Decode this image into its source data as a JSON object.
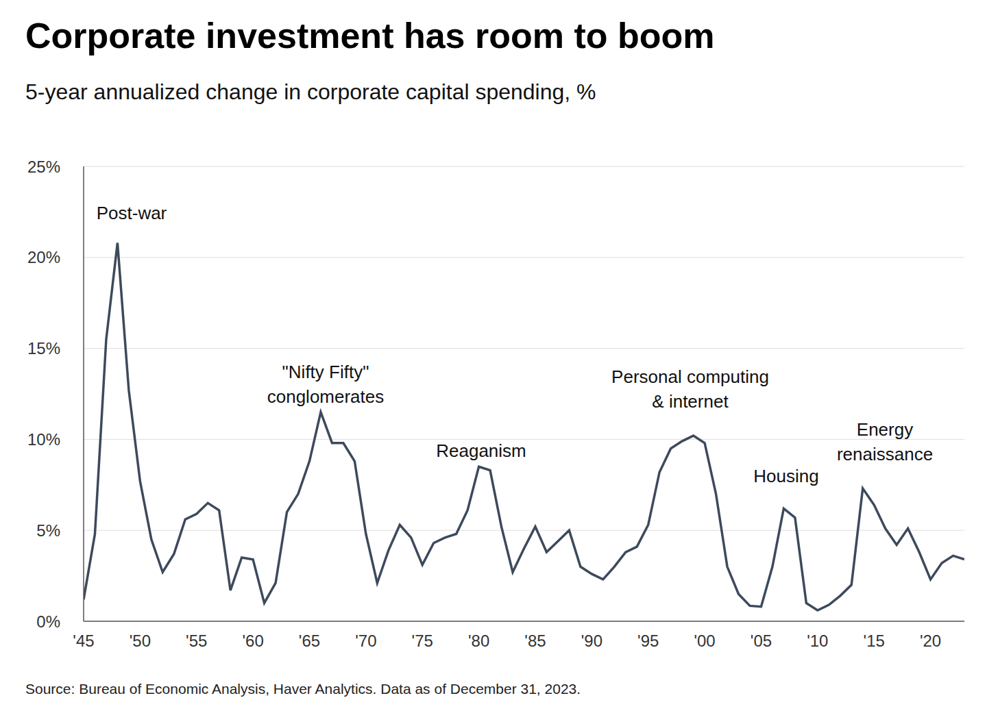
{
  "chart_data": {
    "type": "line",
    "title": "Corporate investment has room to boom",
    "subtitle": "5-year annualized change in corporate capital spending, %",
    "source": "Source: Bureau of Economic Analysis, Haver Analytics. Data as of December 31, 2023.",
    "x": [
      1945,
      1946,
      1947,
      1948,
      1949,
      1950,
      1951,
      1952,
      1953,
      1954,
      1955,
      1956,
      1957,
      1958,
      1959,
      1960,
      1961,
      1962,
      1963,
      1964,
      1965,
      1966,
      1967,
      1968,
      1969,
      1970,
      1971,
      1972,
      1973,
      1974,
      1975,
      1976,
      1977,
      1978,
      1979,
      1980,
      1981,
      1982,
      1983,
      1984,
      1985,
      1986,
      1987,
      1988,
      1989,
      1990,
      1991,
      1992,
      1993,
      1994,
      1995,
      1996,
      1997,
      1998,
      1999,
      2000,
      2001,
      2002,
      2003,
      2004,
      2005,
      2006,
      2007,
      2008,
      2009,
      2010,
      2011,
      2012,
      2013,
      2014,
      2015,
      2016,
      2017,
      2018,
      2019,
      2020,
      2021,
      2022,
      2023
    ],
    "values": [
      1.2,
      4.8,
      15.5,
      20.8,
      12.7,
      7.7,
      4.5,
      2.7,
      3.7,
      5.6,
      5.9,
      6.5,
      6.1,
      1.7,
      3.5,
      3.4,
      1.0,
      2.1,
      6.0,
      7.0,
      8.8,
      11.5,
      9.8,
      9.8,
      8.8,
      4.8,
      2.1,
      3.9,
      5.3,
      4.6,
      3.1,
      4.3,
      4.6,
      4.8,
      6.1,
      8.5,
      8.3,
      5.2,
      2.7,
      4.0,
      5.2,
      3.8,
      4.4,
      5.0,
      3.0,
      2.6,
      2.3,
      3.0,
      3.8,
      4.1,
      5.3,
      8.2,
      9.5,
      9.9,
      10.2,
      9.8,
      7.0,
      3.0,
      1.5,
      0.85,
      0.8,
      3.0,
      6.2,
      5.7,
      1.0,
      0.6,
      0.9,
      1.4,
      2.0,
      7.3,
      6.4,
      5.1,
      4.2,
      5.1,
      3.8,
      2.3,
      3.2,
      3.6,
      3.4
    ],
    "color": "#3d4a5c",
    "xlim": [
      1945,
      2023
    ],
    "xticks": [
      {
        "value": 1945,
        "label": "'45"
      },
      {
        "value": 1950,
        "label": "'50"
      },
      {
        "value": 1955,
        "label": "'55"
      },
      {
        "value": 1960,
        "label": "'60"
      },
      {
        "value": 1965,
        "label": "'65"
      },
      {
        "value": 1970,
        "label": "'70"
      },
      {
        "value": 1975,
        "label": "'75"
      },
      {
        "value": 1980,
        "label": "'80"
      },
      {
        "value": 1985,
        "label": "'85"
      },
      {
        "value": 1990,
        "label": "'90"
      },
      {
        "value": 1995,
        "label": "'95"
      },
      {
        "value": 2000,
        "label": "'00"
      },
      {
        "value": 2005,
        "label": "'05"
      },
      {
        "value": 2010,
        "label": "'10"
      },
      {
        "value": 2015,
        "label": "'15"
      },
      {
        "value": 2020,
        "label": "'20"
      }
    ],
    "ylim": [
      0,
      25
    ],
    "yticks": [
      {
        "value": 0,
        "label": "0%"
      },
      {
        "value": 5,
        "label": "5%"
      },
      {
        "value": 10,
        "label": "10%"
      },
      {
        "value": 15,
        "label": "15%"
      },
      {
        "value": 20,
        "label": "20%"
      },
      {
        "value": 25,
        "label": "25%"
      }
    ],
    "grid": true,
    "annotations": [
      {
        "lines": [
          "Post-war"
        ]
      },
      {
        "lines": [
          "\"Nifty Fifty\"",
          "conglomerates"
        ]
      },
      {
        "lines": [
          "Reaganism"
        ]
      },
      {
        "lines": [
          "Personal computing",
          "& internet"
        ]
      },
      {
        "lines": [
          "Housing"
        ]
      },
      {
        "lines": [
          "Energy",
          "renaissance"
        ]
      }
    ]
  }
}
